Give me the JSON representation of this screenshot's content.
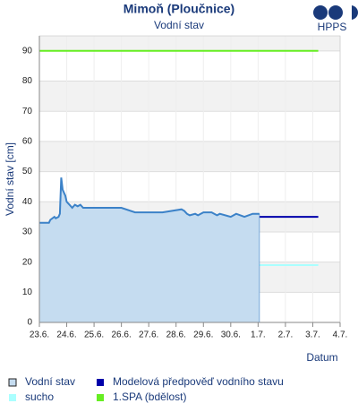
{
  "chart_data": {
    "type": "line",
    "title": "Mimoň (Ploučnice)",
    "subtitle": "Vodní stav",
    "logo": "HPPS",
    "y_label": "Vodní stav [cm]",
    "x_label": "Datum",
    "xlim": [
      0,
      11
    ],
    "xticks": [
      {
        "value": 0,
        "label": "23.6."
      },
      {
        "value": 1,
        "label": "24.6."
      },
      {
        "value": 2,
        "label": "25.6."
      },
      {
        "value": 3,
        "label": "26.6."
      },
      {
        "value": 4,
        "label": "27.6."
      },
      {
        "value": 5,
        "label": "28.6."
      },
      {
        "value": 6,
        "label": "29.6."
      },
      {
        "value": 7,
        "label": "30.6."
      },
      {
        "value": 8,
        "label": "1.7."
      },
      {
        "value": 9,
        "label": "2.7."
      },
      {
        "value": 10,
        "label": "3.7."
      },
      {
        "value": 11,
        "label": "4.7."
      }
    ],
    "ylim": [
      0,
      95
    ],
    "yticks": [
      0,
      10,
      20,
      30,
      40,
      50,
      60,
      70,
      80,
      90
    ],
    "grid": true,
    "series": [
      {
        "name": "Vodní stav",
        "color": "#3c82c8",
        "fill": "#c5dcf0",
        "area": true,
        "x": [
          0,
          0.35,
          0.4,
          0.55,
          0.6,
          0.7,
          0.75,
          0.8,
          0.85,
          0.9,
          0.95,
          1.0,
          1.1,
          1.2,
          1.3,
          1.4,
          1.5,
          1.6,
          1.7,
          2.0,
          3.0,
          3.5,
          4.5,
          5.2,
          5.3,
          5.4,
          5.5,
          5.7,
          5.8,
          6.0,
          6.3,
          6.5,
          6.6,
          7.0,
          7.2,
          7.5,
          7.8,
          8.05
        ],
        "values": [
          33,
          33,
          34,
          35,
          34.5,
          35,
          36,
          48,
          44,
          43,
          42,
          40,
          39,
          38,
          39,
          38.5,
          39,
          38,
          38,
          38,
          38,
          36.5,
          36.5,
          37.5,
          37,
          36,
          35.5,
          36,
          35.5,
          36.5,
          36.5,
          35.5,
          36,
          35,
          36,
          35,
          36,
          36
        ]
      },
      {
        "name": "Modelová předpověď vodního stavu",
        "color": "#0000aa",
        "x": [
          7.6,
          10.2
        ],
        "values": [
          35,
          35
        ]
      },
      {
        "name": "sucho",
        "color": "#aaffff",
        "x": [
          0,
          10.2
        ],
        "values": [
          19,
          19
        ]
      },
      {
        "name": "1.SPA (bdělost)",
        "color": "#66ee22",
        "x": [
          0,
          10.2
        ],
        "values": [
          90,
          90
        ]
      }
    ]
  }
}
